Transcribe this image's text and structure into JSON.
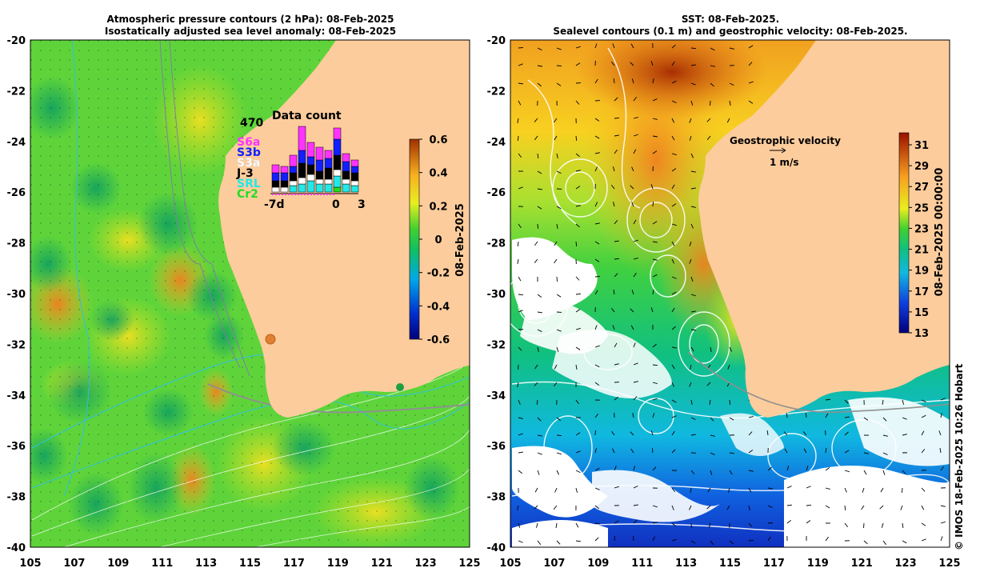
{
  "left_panel": {
    "title_line1": "Atmospheric pressure contours (2 hPa): 08-Feb-2025",
    "title_line2": "Isostatically adjusted sea level anomaly: 08-Feb-2025",
    "colorbar": {
      "label": "08-Feb-2025",
      "ticks": [
        "0.6",
        "0.4",
        "0.2",
        "0",
        "-0.2",
        "-0.4",
        "-0.6"
      ]
    },
    "data_count": {
      "title": "Data count",
      "max": "470",
      "x_labels": [
        "-7d",
        "0",
        "3"
      ],
      "satellites": [
        {
          "name": "S6a",
          "color": "#ff33ff"
        },
        {
          "name": "S3b",
          "color": "#1020ff"
        },
        {
          "name": "S3a",
          "color": "#ffffff"
        },
        {
          "name": "J-3",
          "color": "#000000"
        },
        {
          "name": "SRL",
          "color": "#22e8e8"
        },
        {
          "name": "Cr2",
          "color": "#22dd22"
        }
      ]
    }
  },
  "right_panel": {
    "title_line1": "SST: 08-Feb-2025.",
    "title_line2": "Sealevel contours (0.1 m) and geostrophic velocity: 08-Feb-2025.",
    "colorbar": {
      "label": "08-Feb-2025 00:00:00",
      "ticks": [
        "31",
        "29",
        "27",
        "25",
        "23",
        "21",
        "19",
        "17",
        "15",
        "13"
      ]
    },
    "velocity_legend": {
      "title": "Geostrophic velocity",
      "scale": "1 m/s"
    }
  },
  "axes": {
    "lat_labels": [
      "-20",
      "-22",
      "-24",
      "-26",
      "-28",
      "-30",
      "-32",
      "-34",
      "-36",
      "-38",
      "-40"
    ],
    "lon_labels": [
      "105",
      "107",
      "109",
      "111",
      "113",
      "115",
      "117",
      "119",
      "121",
      "123",
      "125"
    ]
  },
  "credit": "© IMOS 18-Feb-2025 10:26 Hobart"
}
